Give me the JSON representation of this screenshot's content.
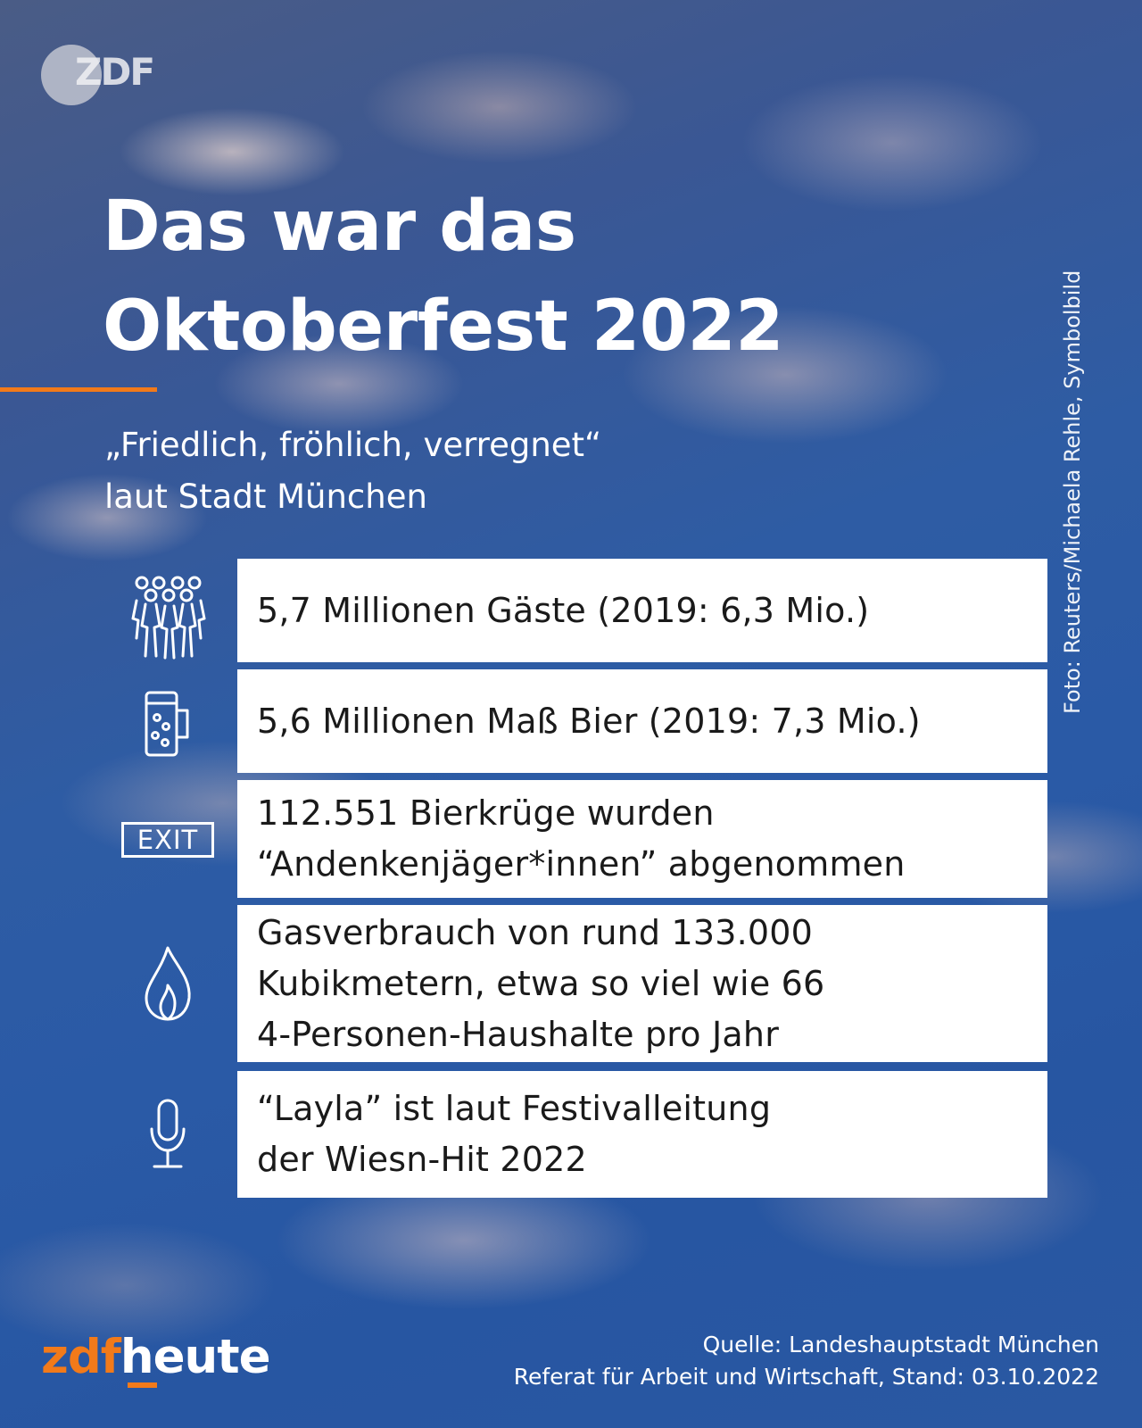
{
  "header": {
    "zdf_logo": "ZDF"
  },
  "title": {
    "lines": [
      "Das war das",
      "Oktoberfest 2022"
    ]
  },
  "subtitle": {
    "lines": [
      "„Friedlich, fröhlich, verregnet“",
      "laut Stadt München"
    ]
  },
  "photo_credit": "Foto: Reuters/Michaela Rehle, Symbolbild",
  "facts": [
    {
      "icon": "crowd-icon",
      "lines": [
        "5,7 Millionen Gäste (2019: 6,3 Mio.)"
      ]
    },
    {
      "icon": "beer-mug-icon",
      "lines": [
        "5,6 Millionen Maß Bier (2019: 7,3 Mio.)"
      ]
    },
    {
      "icon": "exit-sign-icon",
      "icon_text": "EXIT",
      "lines": [
        "112.551 Bierkrüge wurden",
        "“Andenkenjäger*innen” abgenommen"
      ]
    },
    {
      "icon": "gas-flame-icon",
      "lines": [
        "Gasverbrauch von rund 133.000",
        "Kubikmetern, etwa so viel wie 66",
        "4-Personen-Haushalte pro Jahr"
      ]
    },
    {
      "icon": "microphone-icon",
      "lines": [
        "“Layla” ist laut Festivalleitung",
        "der Wiesn-Hit 2022"
      ]
    }
  ],
  "footer": {
    "brand_zdf": "zdf",
    "brand_heute": "heute",
    "source_lines": [
      "Quelle: Landeshauptstadt München",
      "Referat für Arbeit und Wirtschaft, Stand: 03.10.2022"
    ]
  },
  "colors": {
    "accent": "#f27a1a",
    "background_blue": "#2a5aa6",
    "card": "#ffffff",
    "text_dark": "#1a1a1a"
  }
}
